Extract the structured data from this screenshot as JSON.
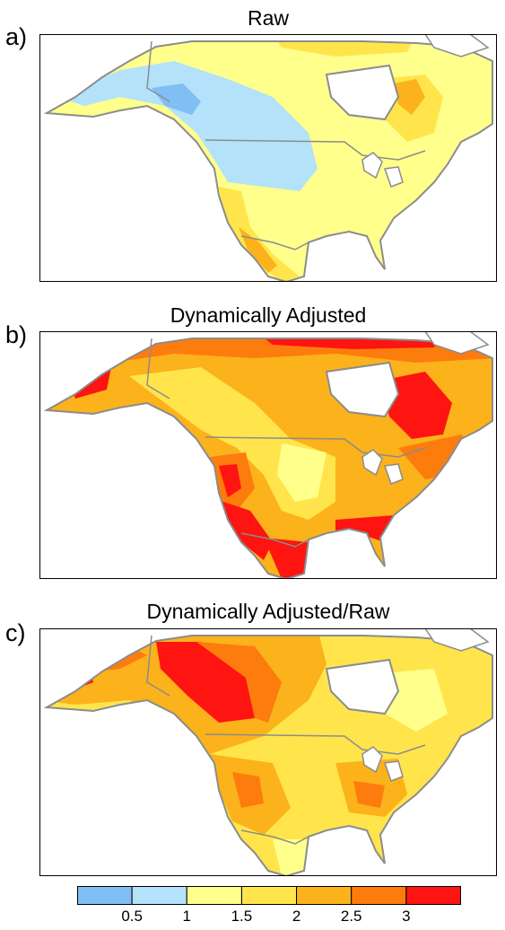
{
  "colors": {
    "levels": [
      "#7fbff3",
      "#b3e2fa",
      "#ffff8c",
      "#ffe54b",
      "#fcb21a",
      "#fd7c0e",
      "#fe1410"
    ],
    "land_outline": "#8c8c8c",
    "ocean": "#ffffff",
    "ice": "#ffffff"
  },
  "panels": [
    {
      "letter": "a)",
      "title": "Raw"
    },
    {
      "letter": "b)",
      "title": "Dynamically Adjusted"
    },
    {
      "letter": "c)",
      "title": "Dynamically Adjusted/Raw"
    }
  ],
  "colorbar": {
    "labels": [
      "0.5",
      "1",
      "1.5",
      "2",
      "2.5",
      "3"
    ]
  }
}
